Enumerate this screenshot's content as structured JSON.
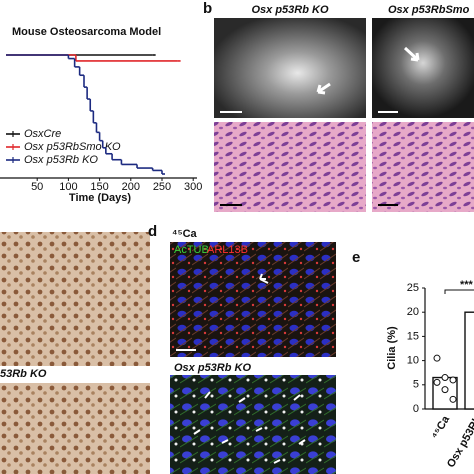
{
  "figure": {
    "panel_b": {
      "label": "b",
      "left_title": "Osx p53Rb KO",
      "right_title": "Osx p53RbSmo"
    },
    "panel_c": {
      "lower_title": "53Rb KO"
    },
    "panel_d": {
      "label": "d",
      "top_title": "⁴⁵Ca",
      "stain_1": "AcTUB",
      "stain_2": "ARL13B",
      "lower_title": "Osx p53Rb KO"
    },
    "panel_e": {
      "label": "e"
    }
  },
  "chart_data": [
    {
      "type": "step",
      "title": "Mouse Osteosarcoma Model",
      "x_label": "Time (Days)",
      "xlim": [
        0,
        300
      ],
      "xticks": [
        50,
        100,
        150,
        200,
        250,
        300
      ],
      "ylim": [
        0,
        100
      ],
      "legend": "lower-left",
      "series": [
        {
          "name": "OsxCre",
          "color": "#111111",
          "x": [
            0,
            235
          ],
          "values": [
            100,
            100
          ]
        },
        {
          "name": "Osx p53RbSmo KO",
          "color": "#e0262a",
          "x": [
            0,
            112,
            275
          ],
          "values": [
            100,
            95,
            95
          ]
        },
        {
          "name": "Osx p53Rb KO",
          "color": "#1c2a80",
          "x": [
            0,
            100,
            110,
            118,
            125,
            130,
            135,
            140,
            145,
            150,
            155,
            160,
            170,
            185,
            210,
            235,
            250
          ],
          "values": [
            100,
            97,
            90,
            83,
            73,
            63,
            53,
            43,
            35,
            28,
            22,
            17,
            12,
            8,
            5,
            3,
            0
          ]
        }
      ]
    },
    {
      "type": "bar",
      "y_label": "Cilia (%)",
      "categories": [
        "⁴⁵Ca",
        "Osx p53Rb"
      ],
      "values": [
        6.5,
        20
      ],
      "points": [
        [
          10.5,
          6.5,
          6,
          5.5,
          4,
          2
        ],
        []
      ],
      "annotation": "***",
      "ylim": [
        0,
        25
      ],
      "yticks": [
        0,
        5,
        10,
        15,
        20,
        25
      ],
      "color": "#ffffff"
    }
  ]
}
